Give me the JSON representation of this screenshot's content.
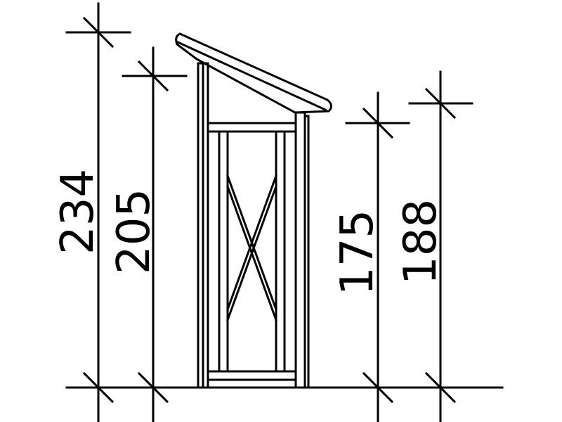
{
  "dimensions": {
    "total_height": "234",
    "front_height": "205",
    "door_height": "175",
    "back_height": "188"
  }
}
